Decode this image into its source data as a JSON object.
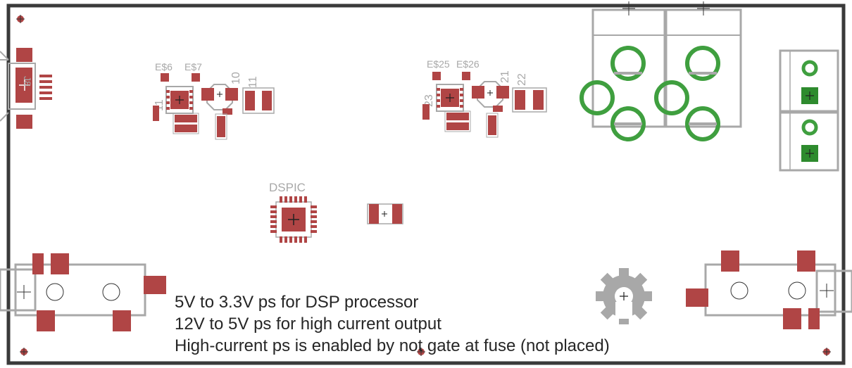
{
  "labels": {
    "e6": "E$6",
    "e7": "E$7",
    "e25": "E$25",
    "e26": "E$26",
    "dspic": "DSPIC",
    "c11": "11",
    "c10": "10",
    "c11b": "11",
    "c21": "21",
    "c22": "22",
    "c23": "23",
    "left_conn": "J8"
  },
  "notes": {
    "line1": "5V to 3.3V ps for DSP processor",
    "line2": "12V to 5V ps for high current output",
    "line3": "High-current ps is enabled by not gate at fuse (not placed)"
  },
  "colors": {
    "pad": "#b04545",
    "outline": "#a8a8a8",
    "board_edge": "#3a3a3a",
    "via_ring": "#3f9f3f",
    "terminal_pad": "#2e8b2e",
    "note_text": "#262626"
  },
  "icons": {
    "logo": "open-hardware-gear-icon",
    "origin": "crosshair-icon"
  }
}
